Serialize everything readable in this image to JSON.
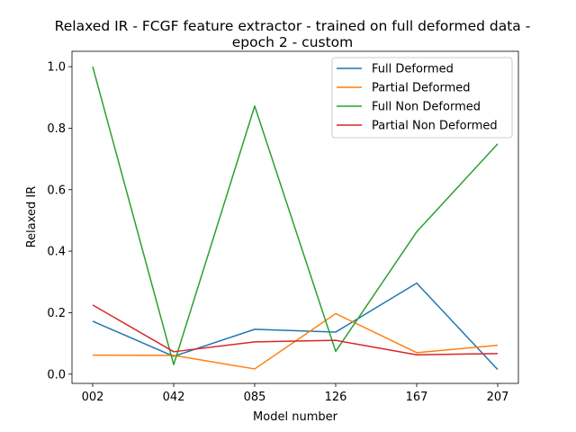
{
  "chart_data": {
    "type": "line",
    "title_lines": [
      "Relaxed IR - FCGF feature extractor -  trained on full deformed data -",
      "epoch 2 - custom"
    ],
    "xlabel": "Model number",
    "ylabel": "Relaxed IR",
    "categories": [
      "002",
      "042",
      "085",
      "126",
      "167",
      "207"
    ],
    "ylim": [
      -0.03,
      1.05
    ],
    "yticks": [
      0.0,
      0.2,
      0.4,
      0.6,
      0.8,
      1.0
    ],
    "ytick_labels": [
      "0.0",
      "0.2",
      "0.4",
      "0.6",
      "0.8",
      "1.0"
    ],
    "grid": false,
    "legend_position": "top-right",
    "series": [
      {
        "name": "Full Deformed",
        "color": "#1f77b4",
        "values": [
          0.172,
          0.058,
          0.146,
          0.137,
          0.296,
          0.015
        ]
      },
      {
        "name": "Partial Deformed",
        "color": "#ff7f0e",
        "values": [
          0.062,
          0.061,
          0.017,
          0.197,
          0.07,
          0.094
        ]
      },
      {
        "name": "Full Non Deformed",
        "color": "#2ca02c",
        "values": [
          1.0,
          0.031,
          0.872,
          0.074,
          0.463,
          0.749
        ]
      },
      {
        "name": "Partial Non Deformed",
        "color": "#d62728",
        "values": [
          0.225,
          0.073,
          0.105,
          0.11,
          0.063,
          0.067
        ]
      }
    ]
  }
}
